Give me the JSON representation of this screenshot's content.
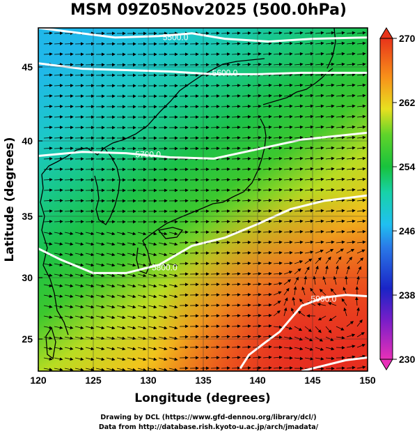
{
  "title": "MSM 09Z05Nov2025 (500.0hPa)",
  "xlabel": "Longitude (degrees)",
  "ylabel": "Latitude  (degrees)",
  "x_ticks": [
    "120",
    "125",
    "130",
    "135",
    "140",
    "145",
    "150"
  ],
  "y_ticks": [
    "25",
    "30",
    "35",
    "40",
    "45"
  ],
  "colorbar_ticks": [
    "270",
    "262",
    "254",
    "246",
    "238",
    "230"
  ],
  "contour_labels": [
    "5500.0",
    "5600.0",
    "5700.0",
    "5800.0",
    "5900.0"
  ],
  "credits": {
    "line1": "Drawing by DCL (https://www.gfd-dennou.org/library/dcl/)",
    "line2": "Data from http://database.rish.kyoto-u.ac.jp/arch/jmadata/"
  },
  "chart_data": {
    "type": "heatmap",
    "title": "MSM 09Z05Nov2025 (500.0hPa)",
    "xlabel": "Longitude (degrees)",
    "ylabel": "Latitude  (degrees)",
    "xlim": [
      120,
      150
    ],
    "ylim": [
      22.4,
      47.6
    ],
    "colorbar": {
      "range": [
        230,
        270
      ],
      "ticks": [
        230,
        238,
        246,
        254,
        262,
        270
      ]
    },
    "colors": {
      "270": "#e83a1a",
      "266": "#f87a12",
      "262": "#f2d21c",
      "258": "#7ee02a",
      "254": "#18c23c",
      "250": "#18d2a8",
      "246": "#20b4f0",
      "242": "#2a66e8",
      "238": "#1a24c6",
      "234": "#8a1ec4",
      "230": "#e830b8"
    },
    "contours": [
      {
        "level": "5500.0",
        "points": [
          [
            120,
            47.6
          ],
          [
            123,
            47.3
          ],
          [
            127,
            46.9
          ],
          [
            131,
            47.0
          ],
          [
            134,
            47.2
          ],
          [
            137,
            46.8
          ],
          [
            141,
            46.6
          ],
          [
            145,
            46.8
          ],
          [
            150,
            46.9
          ]
        ]
      },
      {
        "level": "5600.0",
        "points": [
          [
            120,
            45.0
          ],
          [
            124,
            44.6
          ],
          [
            128,
            44.5
          ],
          [
            132,
            44.4
          ],
          [
            136,
            44.2
          ],
          [
            140,
            44.2
          ],
          [
            144,
            44.3
          ],
          [
            150,
            44.3
          ]
        ]
      },
      {
        "level": "5700.0",
        "points": [
          [
            120,
            38.2
          ],
          [
            124,
            38.5
          ],
          [
            128,
            38.4
          ],
          [
            132,
            38.1
          ],
          [
            136,
            38.0
          ],
          [
            140,
            38.7
          ],
          [
            144,
            39.4
          ],
          [
            150,
            39.9
          ]
        ]
      },
      {
        "level": "5800.0",
        "points": [
          [
            120,
            31.4
          ],
          [
            122,
            30.6
          ],
          [
            125,
            29.6
          ],
          [
            128,
            29.6
          ],
          [
            131,
            30.2
          ],
          [
            134,
            31.6
          ],
          [
            137,
            32.2
          ],
          [
            140,
            33.2
          ],
          [
            143,
            34.3
          ],
          [
            146,
            34.9
          ],
          [
            150,
            35.3
          ]
        ]
      },
      {
        "level": "5900.0",
        "points": [
          [
            138.4,
            22.6
          ],
          [
            139.2,
            23.6
          ],
          [
            140.5,
            24.4
          ],
          [
            142,
            25.3
          ],
          [
            144,
            27.2
          ],
          [
            146,
            27.8
          ],
          [
            148,
            28.0
          ],
          [
            150,
            27.9
          ]
        ]
      },
      {
        "level": "5900.0",
        "points": [
          [
            144,
            22.4
          ],
          [
            146,
            22.8
          ],
          [
            148,
            23.2
          ],
          [
            150,
            23.4
          ]
        ]
      }
    ]
  }
}
